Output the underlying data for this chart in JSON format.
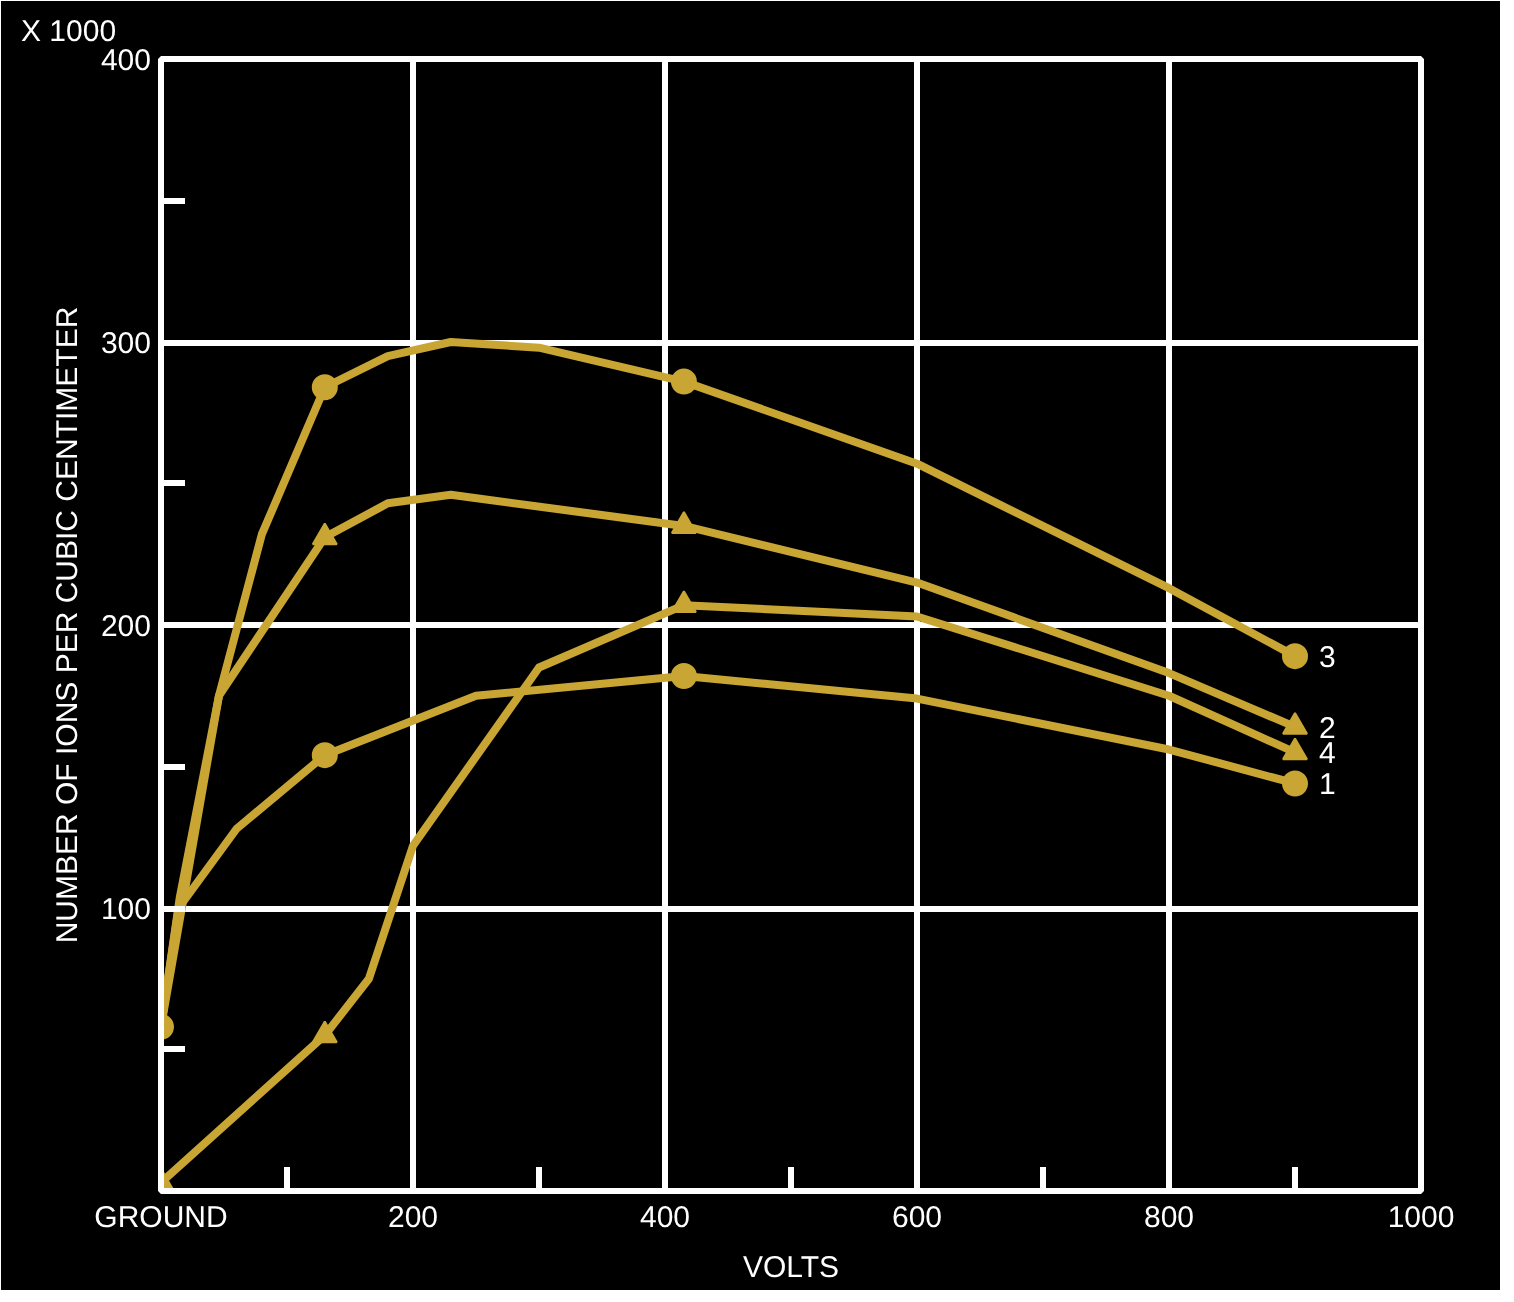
{
  "chart_data": {
    "type": "line",
    "xlabel": "VOLTS",
    "ylabel": "NUMBER OF IONS PER CUBIC CENTIMETER",
    "annotations": [
      "X 1000"
    ],
    "series": [
      {
        "name": "3",
        "color": "#c9a633",
        "x": [
          0,
          46,
          80,
          130,
          180,
          230,
          300,
          415,
          600,
          800,
          900
        ],
        "values": [
          58,
          175,
          232,
          284,
          295,
          300,
          298,
          286,
          257,
          213,
          189
        ]
      },
      {
        "name": "2",
        "color": "#c9a633",
        "x": [
          0,
          15,
          46,
          130,
          180,
          230,
          415,
          600,
          800,
          900
        ],
        "values": [
          58,
          104,
          175,
          231,
          243,
          246,
          235,
          215,
          183,
          164
        ]
      },
      {
        "name": "4",
        "color": "#c9a633",
        "x": [
          0,
          130,
          165,
          200,
          300,
          415,
          600,
          800,
          900
        ],
        "values": [
          3,
          55,
          75,
          122,
          185,
          207,
          203,
          175,
          155
        ]
      },
      {
        "name": "1",
        "color": "#c9a633",
        "x": [
          0,
          14,
          60,
          130,
          250,
          415,
          600,
          800,
          900
        ],
        "values": [
          58,
          100,
          128,
          154,
          175,
          182,
          174,
          156,
          144
        ]
      },
      {
        "type": "scatter",
        "color": "#c9a633",
        "marker": "circle",
        "x": [
          0,
          130,
          415,
          900
        ],
        "values": [
          58,
          284,
          286,
          189
        ]
      },
      {
        "type": "scatter",
        "color": "#c9a633",
        "marker": "triangle",
        "x": [
          130,
          415,
          900
        ],
        "values": [
          231,
          235,
          164
        ]
      },
      {
        "type": "scatter",
        "color": "#c9a633",
        "marker": "triangle",
        "x": [
          0,
          130,
          415,
          900
        ],
        "values": [
          3,
          55,
          207,
          155
        ]
      },
      {
        "type": "scatter",
        "color": "#c9a633",
        "marker": "circle",
        "x": [
          130,
          415,
          900
        ],
        "values": [
          154,
          182,
          144
        ]
      }
    ],
    "xlim": [
      0,
      1000
    ],
    "ylim": [
      0,
      400
    ],
    "xticks": [
      {
        "value": 0,
        "label": "GROUND"
      },
      {
        "value": 100,
        "label": null
      },
      200,
      {
        "value": 300,
        "label": null
      },
      400,
      {
        "value": 500,
        "label": null
      },
      600,
      {
        "value": 700,
        "label": null
      },
      800,
      {
        "value": 900,
        "label": null
      },
      1000
    ],
    "yticks": [
      {
        "value": 50,
        "label": null
      },
      100,
      {
        "value": 150,
        "label": null
      },
      200,
      {
        "value": 250,
        "label": null
      },
      300,
      {
        "value": 350,
        "label": null
      },
      400
    ],
    "grid": true,
    "legend": false
  }
}
